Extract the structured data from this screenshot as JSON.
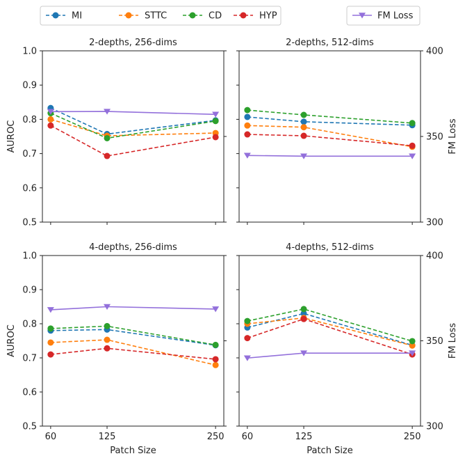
{
  "chart_data": {
    "type": "line",
    "legend_position": "top",
    "legend": {
      "entries": [
        {
          "name": "MI",
          "color": "#1f77b4",
          "style": "dashed",
          "marker": "circle"
        },
        {
          "name": "STTC",
          "color": "#ff7f0e",
          "style": "dashed",
          "marker": "circle"
        },
        {
          "name": "CD",
          "color": "#2ca02c",
          "style": "dashed",
          "marker": "circle"
        },
        {
          "name": "HYP",
          "color": "#d62728",
          "style": "dashed",
          "marker": "circle"
        }
      ],
      "fm_loss_entry": {
        "name": "FM Loss",
        "color": "#9370db",
        "style": "solid",
        "marker": "triangle-down"
      }
    },
    "x": [
      60,
      125,
      250
    ],
    "x_tick_labels": [
      "60",
      "125",
      "250"
    ],
    "xlabel": "Patch Size",
    "ylabel_left": "AUROC",
    "ylabel_right": "FM Loss",
    "ylim_left": [
      0.5,
      1.0
    ],
    "yticks_left": [
      0.5,
      0.6,
      0.7,
      0.8,
      0.9,
      1.0
    ],
    "ytick_labels_left": [
      "0.5",
      "0.6",
      "0.7",
      "0.8",
      "0.9",
      "1.0"
    ],
    "ylim_right": [
      300,
      400
    ],
    "yticks_right": [
      300,
      350,
      400
    ],
    "ytick_labels_right": [
      "300",
      "350",
      "400"
    ],
    "subplots": [
      {
        "title": "2-depths, 256-dims",
        "series": [
          {
            "name": "MI",
            "values": [
              0.833,
              0.757,
              0.797
            ]
          },
          {
            "name": "STTC",
            "values": [
              0.8,
              0.752,
              0.76
            ]
          },
          {
            "name": "CD",
            "values": [
              0.818,
              0.745,
              0.795
            ]
          },
          {
            "name": "HYP",
            "values": [
              0.782,
              0.693,
              0.748
            ]
          }
        ],
        "fm_loss": [
          364.5,
          364.6,
          362.9
        ]
      },
      {
        "title": "2-depths, 512-dims",
        "series": [
          {
            "name": "MI",
            "values": [
              0.807,
              0.793,
              0.783
            ]
          },
          {
            "name": "STTC",
            "values": [
              0.782,
              0.777,
              0.72
            ]
          },
          {
            "name": "CD",
            "values": [
              0.827,
              0.813,
              0.789
            ]
          },
          {
            "name": "HYP",
            "values": [
              0.756,
              0.752,
              0.723
            ]
          }
        ],
        "fm_loss": [
          338.9,
          338.5,
          338.5
        ]
      },
      {
        "title": "4-depths, 256-dims",
        "series": [
          {
            "name": "MI",
            "values": [
              0.78,
              0.783,
              0.737
            ]
          },
          {
            "name": "STTC",
            "values": [
              0.745,
              0.753,
              0.679
            ]
          },
          {
            "name": "CD",
            "values": [
              0.786,
              0.793,
              0.738
            ]
          },
          {
            "name": "HYP",
            "values": [
              0.71,
              0.728,
              0.696
            ]
          }
        ],
        "fm_loss": [
          368.2,
          370.0,
          368.6
        ]
      },
      {
        "title": "4-depths, 512-dims",
        "series": [
          {
            "name": "MI",
            "values": [
              0.789,
              0.83,
              0.737
            ]
          },
          {
            "name": "STTC",
            "values": [
              0.8,
              0.817,
              0.736
            ]
          },
          {
            "name": "CD",
            "values": [
              0.808,
              0.843,
              0.749
            ]
          },
          {
            "name": "HYP",
            "values": [
              0.758,
              0.814,
              0.71
            ]
          }
        ],
        "fm_loss": [
          339.9,
          342.8,
          342.8
        ]
      }
    ]
  }
}
